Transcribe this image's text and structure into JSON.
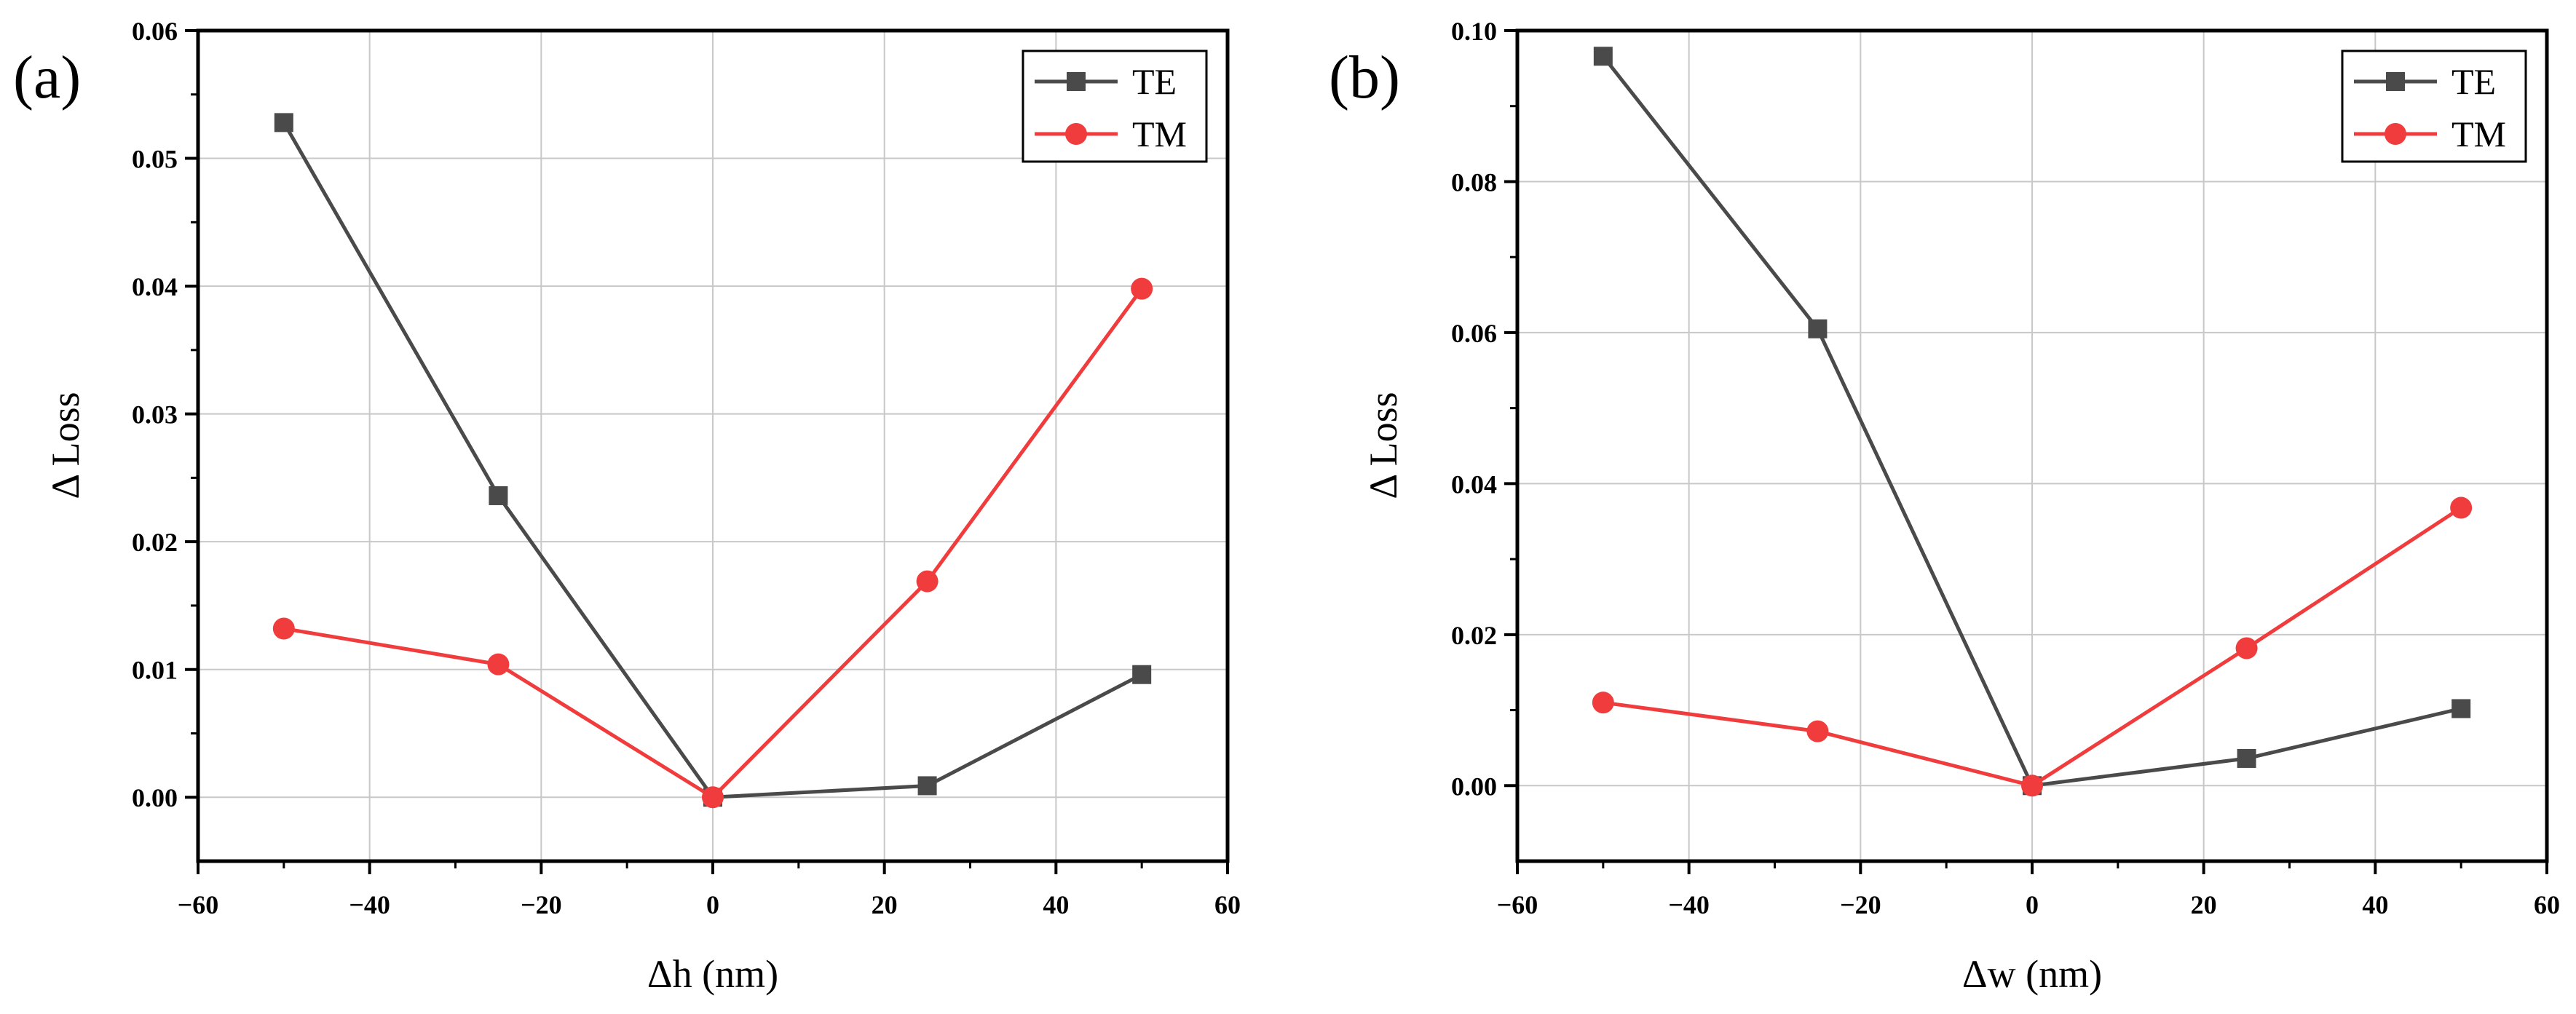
{
  "chart_data": [
    {
      "type": "line",
      "panel_label": "(a)",
      "title": "",
      "xlabel": "Δh (nm)",
      "ylabel": "Δ Loss",
      "xlim": [
        -60,
        60
      ],
      "ylim": [
        -0.005,
        0.06
      ],
      "x_ticks": [
        -60,
        -40,
        -20,
        0,
        20,
        40,
        60
      ],
      "x_tick_labels": [
        "−60",
        "−40",
        "−20",
        "0",
        "20",
        "40",
        "60"
      ],
      "y_ticks": [
        0.0,
        0.01,
        0.02,
        0.03,
        0.04,
        0.05,
        0.06
      ],
      "y_tick_labels": [
        "0.00",
        "0.01",
        "0.02",
        "0.03",
        "0.04",
        "0.05",
        "0.06"
      ],
      "grid": true,
      "legend_position": "top-right",
      "series": [
        {
          "name": "TE",
          "color": "#4a4a4a",
          "marker": "square",
          "x": [
            -50,
            -25,
            0,
            25,
            50
          ],
          "values": [
            0.0528,
            0.0236,
            0.0,
            0.0009,
            0.0096
          ]
        },
        {
          "name": "TM",
          "color": "#f03c3c",
          "marker": "circle",
          "x": [
            -50,
            -25,
            0,
            25,
            50
          ],
          "values": [
            0.0132,
            0.0104,
            0.0,
            0.0169,
            0.0398
          ]
        }
      ]
    },
    {
      "type": "line",
      "panel_label": "(b)",
      "title": "",
      "xlabel": "Δw (nm)",
      "ylabel": "Δ Loss",
      "xlim": [
        -60,
        60
      ],
      "ylim": [
        -0.01,
        0.1
      ],
      "x_ticks": [
        -60,
        -40,
        -20,
        0,
        20,
        40,
        60
      ],
      "x_tick_labels": [
        "−60",
        "−40",
        "−20",
        "0",
        "20",
        "40",
        "60"
      ],
      "y_ticks": [
        0.0,
        0.02,
        0.04,
        0.06,
        0.08,
        0.1
      ],
      "y_tick_labels": [
        "0.00",
        "0.02",
        "0.04",
        "0.06",
        "0.08",
        "0.10"
      ],
      "grid": true,
      "legend_position": "top-right",
      "series": [
        {
          "name": "TE",
          "color": "#4a4a4a",
          "marker": "square",
          "x": [
            -50,
            -25,
            0,
            25,
            50
          ],
          "values": [
            0.0966,
            0.0605,
            0.0,
            0.0036,
            0.0102
          ]
        },
        {
          "name": "TM",
          "color": "#f03c3c",
          "marker": "circle",
          "x": [
            -50,
            -25,
            0,
            25,
            50
          ],
          "values": [
            0.011,
            0.0072,
            0.0,
            0.0182,
            0.0368
          ]
        }
      ]
    }
  ]
}
